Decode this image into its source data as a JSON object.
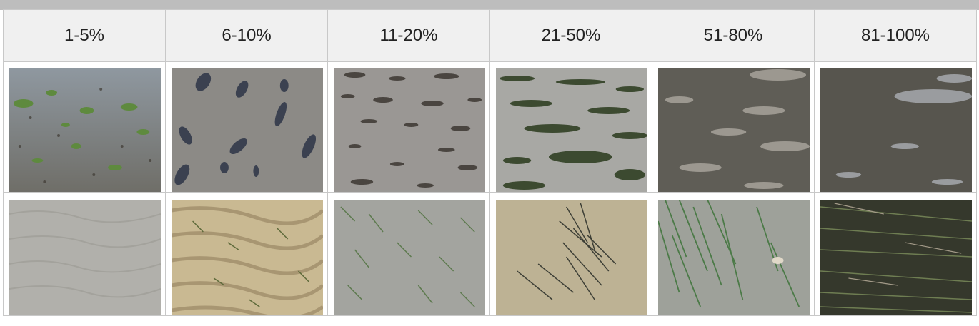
{
  "columns": [
    {
      "label": "1-5%"
    },
    {
      "label": "6-10%"
    },
    {
      "label": "11-20%"
    },
    {
      "label": "21-50%"
    },
    {
      "label": "51-80%"
    },
    {
      "label": "81-100%"
    }
  ],
  "rows": [
    {
      "photos": [
        "mudflat-sparse-algae-photo",
        "mudflat-scattered-clumps-photo",
        "mudflat-patches-photo",
        "mudflat-algae-bands-photo",
        "mudflat-dense-mat-photo",
        "mudflat-near-full-cover-photo"
      ]
    },
    {
      "photos": [
        "sand-bare-photo",
        "sand-ripples-sparse-grass-photo",
        "sand-sparse-seagrass-photo",
        "sand-seagrass-clump-photo",
        "sand-seagrass-strands-photo",
        "sand-dense-seagrass-photo"
      ]
    }
  ]
}
